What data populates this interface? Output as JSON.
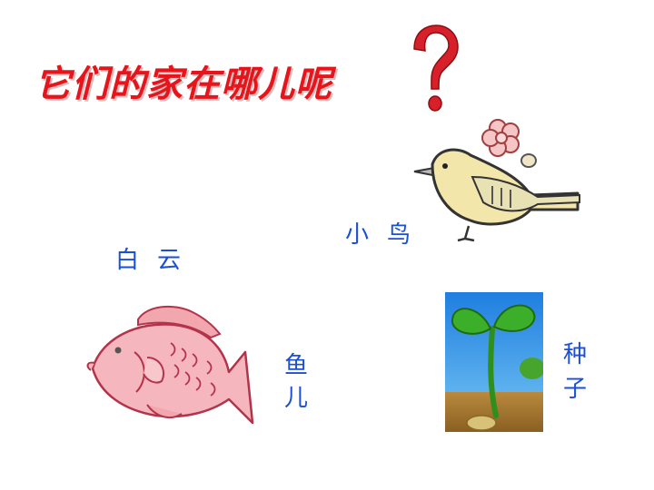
{
  "title": "它们的家在哪儿呢",
  "labels": {
    "cloud": "白云",
    "bird": "小鸟",
    "fish": "鱼儿",
    "seed": "种子"
  },
  "colors": {
    "title": "#e8141b",
    "label": "#1a4fd8",
    "question_mark": "#d8202a"
  },
  "icons": {
    "question_mark": "question-mark-icon",
    "bird": "bird-picture",
    "fish": "fish-picture",
    "sprout": "sprout-picture"
  }
}
